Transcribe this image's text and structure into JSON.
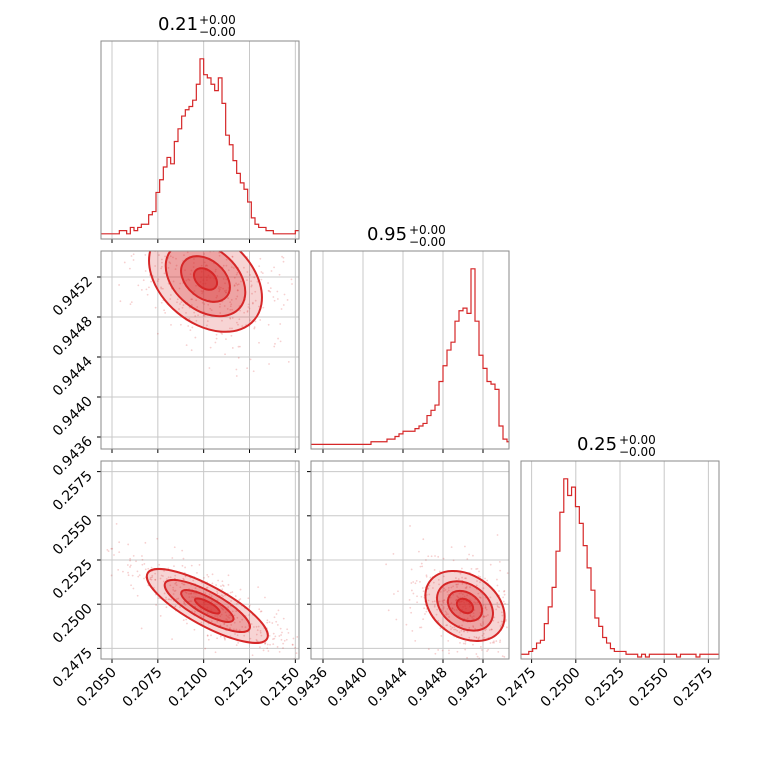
{
  "chart_data": {
    "type": "corner",
    "colors": {
      "line": "#d62728",
      "grid": "#c8c8c8",
      "frame": "#8a8a8a"
    },
    "parameters": [
      {
        "title": "0.21",
        "upper": "+0.00",
        "lower": "−0.00",
        "range": [
          0.2044,
          0.2152
        ],
        "ticks": [
          0.205,
          0.2075,
          0.21,
          0.2125,
          0.215
        ],
        "tick_labels": [
          "0.2050",
          "0.2075",
          "0.2100",
          "0.2125",
          "0.2150"
        ]
      },
      {
        "title": "0.95",
        "upper": "+0.00",
        "lower": "−0.00",
        "range": [
          0.94348,
          0.94546
        ],
        "ticks": [
          0.9436,
          0.944,
          0.9444,
          0.9448,
          0.9452
        ],
        "tick_labels": [
          "0.9436",
          "0.9440",
          "0.9444",
          "0.9448",
          "0.9452"
        ]
      },
      {
        "title": "0.25",
        "upper": "+0.00",
        "lower": "−0.00",
        "range": [
          0.2469,
          0.2581
        ],
        "ticks": [
          0.2475,
          0.25,
          0.2525,
          0.255,
          0.2575
        ],
        "tick_labels": [
          "0.2475",
          "0.2500",
          "0.2525",
          "0.2550",
          "0.2575"
        ]
      }
    ],
    "histograms": [
      {
        "bin_start": 0.2044,
        "bin_width": 0.0002,
        "counts": [
          1,
          1,
          1,
          1,
          1,
          2,
          2,
          1,
          3,
          2,
          3,
          4,
          4,
          7,
          8,
          14,
          18,
          22,
          25,
          23,
          30,
          34,
          38,
          40,
          41,
          43,
          48,
          56,
          51,
          50,
          48,
          46,
          50,
          42,
          32,
          29,
          24,
          20,
          17,
          15,
          11,
          6,
          4,
          3,
          3,
          2,
          2,
          1,
          1,
          1,
          1,
          1,
          1,
          2
        ]
      },
      {
        "bin_start": 0.94348,
        "bin_width": 4e-05,
        "counts": [
          1,
          1,
          1,
          1,
          1,
          1,
          1,
          1,
          1,
          1,
          1,
          1,
          1,
          1,
          1,
          2,
          2,
          2,
          2,
          3,
          3,
          4,
          5,
          6,
          6,
          6,
          7,
          8,
          9,
          12,
          14,
          16,
          25,
          31,
          37,
          40,
          48,
          52,
          53,
          51,
          68,
          48,
          35,
          30,
          25,
          24,
          22,
          8,
          3,
          2
        ]
      },
      {
        "bin_start": 0.2469,
        "bin_width": 0.00022,
        "counts": [
          1,
          1,
          2,
          3,
          5,
          6,
          12,
          18,
          25,
          38,
          52,
          64,
          58,
          61,
          54,
          48,
          40,
          32,
          24,
          14,
          11,
          7,
          5,
          3,
          2,
          2,
          2,
          1,
          1,
          1,
          0,
          1,
          0,
          1,
          1,
          1,
          1,
          1,
          1,
          1,
          0,
          1,
          1,
          1,
          1,
          0,
          1,
          1,
          1,
          1,
          1
        ]
      }
    ],
    "contours": [
      {
        "pair": [
          "p1",
          "p2"
        ],
        "center": [
          0.2101,
          0.94518
        ],
        "sigma": [
          0.0014,
          0.00024
        ],
        "rho": -0.35
      },
      {
        "pair": [
          "p1",
          "p3"
        ],
        "center": [
          0.2102,
          0.2499
        ],
        "sigma": [
          0.0015,
          0.00095
        ],
        "rho": -0.8
      },
      {
        "pair": [
          "p2",
          "p3"
        ],
        "center": [
          0.94502,
          0.2499
        ],
        "sigma": [
          0.00018,
          0.0009
        ],
        "rho": -0.3
      }
    ]
  }
}
